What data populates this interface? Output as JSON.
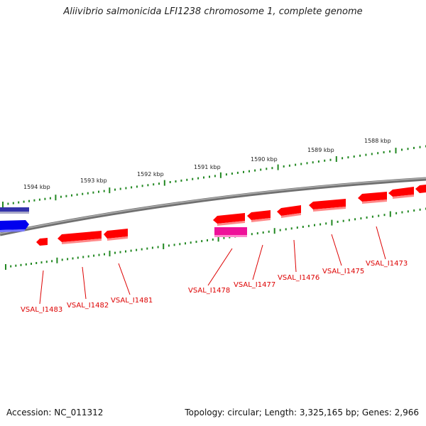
{
  "title": "Aliivibrio salmonicida LFI1238 chromosome 1, complete genome",
  "footer": {
    "accession": "Accession: NC_011312",
    "topology": "Topology: circular; Length: 3,325,165 bp; Genes: 2,966"
  },
  "colors": {
    "forward_gene": "#ff0000",
    "highlight_gene": "#ee1199",
    "other_gene": "#0000ee",
    "tick": "#228822",
    "backbone": "#888888",
    "label": "#dd0000"
  },
  "kbp_labels": [
    "1594 kbp",
    "1593 kbp",
    "1592 kbp",
    "1591 kbp",
    "1590 kbp",
    "1589 kbp",
    "1588 kbp"
  ],
  "gene_labels": [
    "VSAL_I1483",
    "VSAL_I1482",
    "VSAL_I1481",
    "VSAL_I1478",
    "VSAL_I1477",
    "VSAL_I1476",
    "VSAL_I1475",
    "VSAL_I1473"
  ]
}
